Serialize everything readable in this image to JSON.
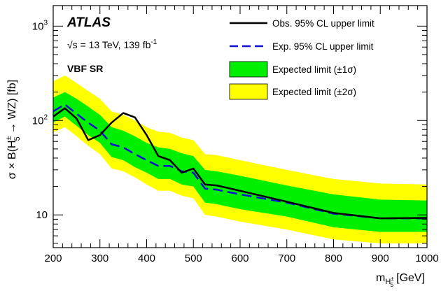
{
  "chart_data": {
    "type": "line",
    "experiment_label": "ATLAS",
    "energy_label": "√s = 13 TeV, 139 fb",
    "energy_label_sup": "-1",
    "region_label": "VBF SR",
    "xlabel": "m",
    "xlabel_sub": "H",
    "xlabel_sub_sup": "±",
    "xlabel_sub_sub": "5",
    "xlabel_unit": "[GeV]",
    "ylabel": "σ × B(H",
    "ylabel_sup": "±",
    "ylabel_sub": "5",
    "ylabel_rest": "→ WZ) [fb]",
    "xlim": [
      200,
      1000
    ],
    "ylim": [
      4.5,
      1650
    ],
    "yscale": "log",
    "x_ticks": [
      200,
      300,
      400,
      500,
      600,
      700,
      800,
      900,
      1000
    ],
    "y_ticks": [
      10,
      100,
      1000
    ],
    "y_tick_labels": [
      "10",
      "10",
      "10"
    ],
    "y_tick_exponents": [
      "",
      "2",
      "3"
    ],
    "legend_position": "top-right",
    "legend": [
      {
        "label": "Obs. 95% CL upper limit",
        "style": "solid",
        "color": "#000000"
      },
      {
        "label": "Exp. 95% CL upper limit",
        "style": "dashed",
        "color": "#1010d0"
      },
      {
        "label": "Expected limit (±1σ)",
        "style": "fill",
        "color": "#00ee00"
      },
      {
        "label": "Expected limit (±2σ)",
        "style": "fill",
        "color": "#ffff00"
      }
    ],
    "x": [
      200,
      225,
      250,
      275,
      300,
      325,
      350,
      375,
      400,
      425,
      450,
      475,
      500,
      525,
      550,
      600,
      700,
      800,
      900,
      1000
    ],
    "series": [
      {
        "name": "Obs. 95% CL upper limit",
        "color": "#000000",
        "values": [
          110,
          135,
          105,
          62,
          70,
          95,
          120,
          108,
          70,
          42,
          38,
          28,
          31,
          21,
          20.5,
          18,
          13.8,
          10.5,
          9.2,
          9.3
        ]
      },
      {
        "name": "Exp. 95% CL upper limit",
        "color": "#1010d0",
        "values": [
          125,
          148,
          118,
          95,
          78,
          56,
          52,
          44,
          38,
          33,
          33,
          29,
          28,
          19,
          18.5,
          16.5,
          13.5,
          10.3,
          9.2,
          9.2
        ]
      },
      {
        "name": "Expected limit (±1σ)",
        "color": "#00ee00",
        "upper": [
          175,
          200,
          170,
          140,
          115,
          85,
          78,
          68,
          58,
          52,
          50,
          45,
          42,
          30,
          29,
          26,
          20.5,
          16.5,
          14.5,
          14.2
        ],
        "lower": [
          95,
          110,
          88,
          70,
          58,
          41,
          38,
          32,
          28,
          24,
          24,
          21,
          20,
          13.5,
          13,
          11.5,
          9.6,
          7.4,
          6.6,
          6.6
        ]
      },
      {
        "name": "Expected limit (±2σ)",
        "color": "#ffff00",
        "upper": [
          260,
          300,
          250,
          205,
          170,
          125,
          115,
          100,
          85,
          76,
          74,
          66,
          62,
          44,
          43,
          38,
          30,
          24,
          21.5,
          21
        ],
        "lower": [
          75,
          85,
          68,
          54,
          44,
          31,
          29,
          25,
          21,
          18,
          18,
          16,
          15,
          10,
          9.6,
          8.5,
          7,
          5.5,
          5,
          5
        ]
      }
    ]
  }
}
